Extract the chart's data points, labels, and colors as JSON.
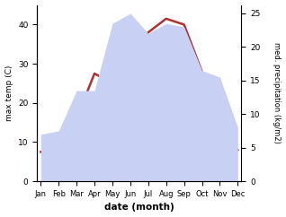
{
  "months": [
    "Jan",
    "Feb",
    "Mar",
    "Apr",
    "May",
    "Jun",
    "Jul",
    "Aug",
    "Sep",
    "Oct",
    "Nov",
    "Dec"
  ],
  "month_positions": [
    1,
    2,
    3,
    4,
    5,
    6,
    7,
    8,
    9,
    10,
    11,
    12
  ],
  "temperature": [
    7.5,
    9.0,
    16.0,
    27.5,
    25.0,
    30.0,
    38.0,
    41.5,
    40.0,
    28.0,
    15.0,
    8.0
  ],
  "precipitation": [
    7.0,
    7.5,
    13.5,
    13.5,
    23.5,
    25.0,
    22.0,
    23.5,
    23.0,
    16.5,
    15.5,
    8.0
  ],
  "temp_color": "#b03030",
  "precip_fill_color": "#c8d0f4",
  "temp_ylim": [
    0,
    45
  ],
  "precip_ylim": [
    0,
    26.25
  ],
  "temp_yticks": [
    0,
    10,
    20,
    30,
    40
  ],
  "precip_yticks": [
    0,
    5,
    10,
    15,
    20,
    25
  ],
  "xlabel": "date (month)",
  "ylabel_left": "max temp (C)",
  "ylabel_right": "med. precipitation (kg/m2)",
  "bg_color": "#ffffff"
}
